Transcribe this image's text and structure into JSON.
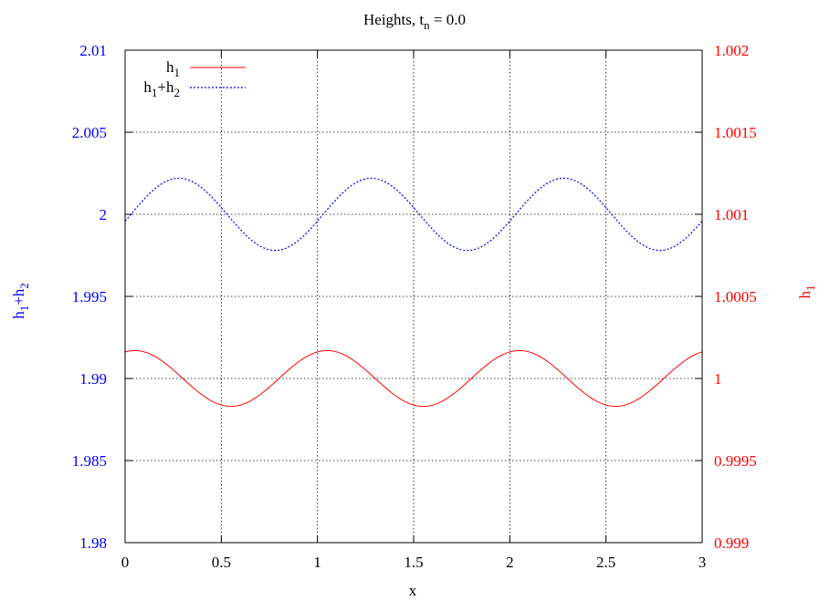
{
  "chart_data": {
    "type": "line",
    "title": "Heights, t",
    "title_sub": "n",
    "title_suffix": " = 0.0",
    "xlabel": "x",
    "xlim": [
      0,
      3
    ],
    "x_ticks": [
      "0",
      "0.5",
      "1",
      "1.5",
      "2",
      "2.5",
      "3"
    ],
    "y_left": {
      "label_base1": "h",
      "label_sub1": "1",
      "label_plus": "+h",
      "label_sub2": "2",
      "range": [
        1.98,
        2.01
      ],
      "ticks": [
        "2.01",
        "2.005",
        "2",
        "1.995",
        "1.99",
        "1.985",
        "1.98"
      ],
      "color": "#0000ff"
    },
    "y_right": {
      "label_base": "h",
      "label_sub": "1",
      "range": [
        0.999,
        1.002
      ],
      "ticks": [
        "1.002",
        "1.0015",
        "1.001",
        "1.0005",
        "1",
        "0.9995",
        "0.999"
      ],
      "color": "#ff0000"
    },
    "grid": true,
    "legend_position": "top-left",
    "series": [
      {
        "name_base": "h",
        "name_sub": "1",
        "axis": "right",
        "color": "#ff0000",
        "style": "solid",
        "mean": 1.0,
        "amplitude": 0.00017,
        "period": 1.0,
        "phase_peak_x": 0.05
      },
      {
        "name_base": "h",
        "name_sub1": "1",
        "name_plus": "+h",
        "name_sub2": "2",
        "axis": "left",
        "color": "#0000ff",
        "style": "dotted",
        "mean": 2.0,
        "amplitude": 0.0022,
        "period": 1.0,
        "phase_peak_x": 0.28
      }
    ]
  }
}
